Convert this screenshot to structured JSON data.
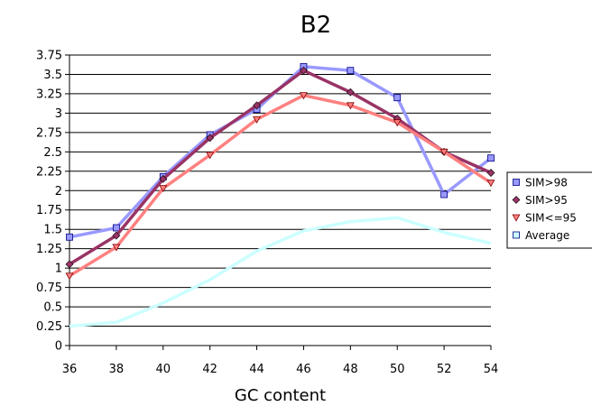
{
  "chart_data": {
    "type": "line",
    "title": "B2",
    "xlabel": "GC content",
    "ylabel": "",
    "x": [
      36,
      38,
      40,
      42,
      44,
      46,
      48,
      50,
      52,
      54
    ],
    "ylim": [
      0,
      3.75
    ],
    "yticks": [
      "0",
      "0.25",
      "0.5",
      "0.75",
      "1",
      "1.25",
      "1.5",
      "1.75",
      "2",
      "2.25",
      "2.5",
      "2.75",
      "3",
      "3.25",
      "3.5",
      "3.75"
    ],
    "grid": true,
    "legend_position": "right",
    "series": [
      {
        "name": "SIM>98",
        "color": "#9999ff",
        "marker": "square",
        "values": [
          1.4,
          1.52,
          2.18,
          2.72,
          3.05,
          3.6,
          3.55,
          3.2,
          1.95,
          2.42
        ]
      },
      {
        "name": "SIM>95",
        "color": "#993366",
        "marker": "diamond",
        "values": [
          1.05,
          1.42,
          2.15,
          2.68,
          3.1,
          3.55,
          3.27,
          2.93,
          2.5,
          2.23
        ]
      },
      {
        "name": "SIM<=95",
        "color": "#ff8080",
        "marker": "triangle",
        "values": [
          0.9,
          1.27,
          2.03,
          2.46,
          2.92,
          3.23,
          3.1,
          2.88,
          2.5,
          2.1
        ]
      },
      {
        "name": "Average",
        "color": "#ccffff",
        "marker": "none",
        "values": [
          0.25,
          0.3,
          0.55,
          0.85,
          1.22,
          1.48,
          1.6,
          1.65,
          1.46,
          1.32
        ]
      }
    ]
  }
}
